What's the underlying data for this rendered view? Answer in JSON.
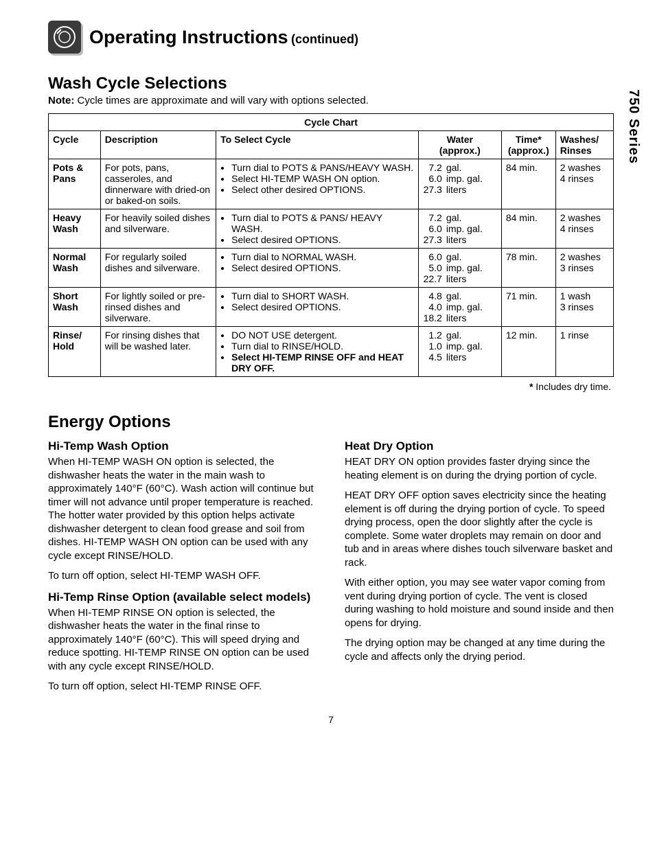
{
  "header": {
    "title": "Operating Instructions",
    "continued": "(continued)"
  },
  "side_tab": "750 Series",
  "wash_section": {
    "heading": "Wash Cycle Selections",
    "note_label": "Note:",
    "note_text": " Cycle times are approximate and will vary with options selected."
  },
  "table": {
    "chart_title": "Cycle Chart",
    "headers": {
      "cycle": "Cycle",
      "description": "Description",
      "to_select": "To Select Cycle",
      "water_l1": "Water",
      "water_l2": "(approx.)",
      "time_l1": "Time*",
      "time_l2": "(approx.)",
      "wr_l1": "Washes/",
      "wr_l2": "Rinses"
    },
    "rows": [
      {
        "cycle_l1": "Pots &",
        "cycle_l2": "Pans",
        "desc": "For pots, pans, casseroles, and dinnerware with dried-on or baked-on soils.",
        "select_items": [
          {
            "text": "Turn dial to POTS & PANS/HEAVY WASH.",
            "bold": false
          },
          {
            "text": "Select HI-TEMP WASH ON option.",
            "bold": false
          },
          {
            "text": "Select other desired OPTIONS.",
            "bold": false
          }
        ],
        "water": [
          {
            "num": "7.2",
            "unit": "gal."
          },
          {
            "num": "6.0",
            "unit": "imp. gal."
          },
          {
            "num": "27.3",
            "unit": "liters"
          }
        ],
        "time": "84 min.",
        "wr_l1": "2 washes",
        "wr_l2": "4 rinses"
      },
      {
        "cycle_l1": "Heavy",
        "cycle_l2": "Wash",
        "desc": "For heavily soiled dishes and silverware.",
        "select_items": [
          {
            "text": "Turn dial to POTS & PANS/ HEAVY WASH.",
            "bold": false
          },
          {
            "text": "Select desired OPTIONS.",
            "bold": false
          }
        ],
        "water": [
          {
            "num": "7.2",
            "unit": "gal."
          },
          {
            "num": "6.0",
            "unit": "imp. gal."
          },
          {
            "num": "27.3",
            "unit": "liters"
          }
        ],
        "time": "84 min.",
        "wr_l1": "2 washes",
        "wr_l2": "4 rinses"
      },
      {
        "cycle_l1": "Normal",
        "cycle_l2": "Wash",
        "desc": "For regularly soiled dishes and silverware.",
        "select_items": [
          {
            "text": "Turn dial to NORMAL WASH.",
            "bold": false
          },
          {
            "text": "Select desired OPTIONS.",
            "bold": false
          }
        ],
        "water": [
          {
            "num": "6.0",
            "unit": "gal."
          },
          {
            "num": "5.0",
            "unit": "imp. gal."
          },
          {
            "num": "22.7",
            "unit": "liters"
          }
        ],
        "time": "78 min.",
        "wr_l1": "2 washes",
        "wr_l2": "3 rinses"
      },
      {
        "cycle_l1": "Short",
        "cycle_l2": "Wash",
        "desc": "For lightly soiled or pre-rinsed dishes and silverware.",
        "select_items": [
          {
            "text": "Turn dial to SHORT WASH.",
            "bold": false
          },
          {
            "text": "Select desired OPTIONS.",
            "bold": false
          }
        ],
        "water": [
          {
            "num": "4.8",
            "unit": "gal."
          },
          {
            "num": "4.0",
            "unit": "imp. gal."
          },
          {
            "num": "18.2",
            "unit": "liters"
          }
        ],
        "time": "71 min.",
        "wr_l1": "1 wash",
        "wr_l2": "3 rinses"
      },
      {
        "cycle_l1": "Rinse/",
        "cycle_l2": "Hold",
        "desc": "For rinsing dishes that will be washed later.",
        "select_items": [
          {
            "text": "DO NOT USE detergent.",
            "bold": false
          },
          {
            "text": "Turn dial to RINSE/HOLD.",
            "bold": false
          },
          {
            "text": "Select HI-TEMP RINSE OFF and HEAT DRY OFF.",
            "bold": true
          }
        ],
        "water": [
          {
            "num": "1.2",
            "unit": "gal."
          },
          {
            "num": "1.0",
            "unit": "imp. gal."
          },
          {
            "num": "4.5",
            "unit": "liters"
          }
        ],
        "time": "12 min.",
        "wr_l1": "1 rinse",
        "wr_l2": ""
      }
    ],
    "footnote_star": "*",
    "footnote": " Includes dry time."
  },
  "energy": {
    "heading": "Energy Options",
    "left": {
      "h1": "Hi-Temp Wash Option",
      "p1": "When HI-TEMP WASH ON option is selected, the dishwasher heats the water in the main wash to approximately 140°F (60°C). Wash action will continue but timer will not advance until proper temperature is reached. The hotter water provided by this option helps activate dishwasher detergent to clean food grease and soil from dishes. HI-TEMP WASH ON option can be used with any cycle except RINSE/HOLD.",
      "p2": "To turn off option, select HI-TEMP WASH OFF.",
      "h2": "Hi-Temp Rinse Option (available select models)",
      "p3": "When HI-TEMP RINSE ON option is selected, the dishwasher heats the water in the final rinse to approximately 140°F (60°C). This will speed drying and reduce spotting. HI-TEMP RINSE ON option can be used with any cycle except RINSE/HOLD.",
      "p4": "To turn off option, select HI-TEMP RINSE OFF."
    },
    "right": {
      "h1": "Heat Dry Option",
      "p1": "HEAT DRY ON option provides faster drying since the heating element is on during the drying portion of cycle.",
      "p2": "HEAT DRY OFF option saves electricity since the heating element is off during the drying portion of cycle. To speed drying process, open the door slightly after the cycle is complete. Some water droplets may remain on door and tub and in areas where dishes touch silverware basket and rack.",
      "p3": "With either option, you may see water vapor coming from vent during drying portion of cycle. The vent is closed during washing to hold moisture and sound inside and then opens for drying.",
      "p4": "The drying option may be changed at any time during the cycle and affects only the drying period."
    }
  },
  "page_number": "7"
}
